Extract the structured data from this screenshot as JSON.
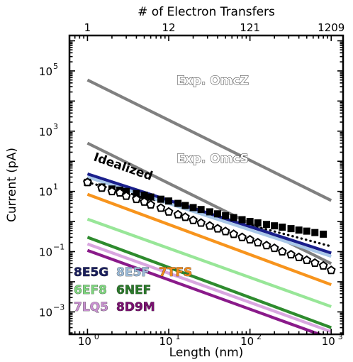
{
  "chart_data": {
    "type": "line",
    "xlabel": "Length (nm)",
    "ylabel": "Current (pA)",
    "top_xlabel": "# of Electron Transfers",
    "x_scale": "log",
    "y_scale": "log",
    "xlim": [
      0.6,
      1400
    ],
    "ylim": [
      0.00018,
      1500000
    ],
    "x_ticks": [
      {
        "value": 1,
        "label": "10",
        "exp": "0"
      },
      {
        "value": 10,
        "label": "10",
        "exp": "1"
      },
      {
        "value": 100,
        "label": "10",
        "exp": "2"
      },
      {
        "value": 1000,
        "label": "10",
        "exp": "3"
      }
    ],
    "y_ticks": [
      {
        "value": 0.001,
        "label": "10",
        "exp": "−3"
      },
      {
        "value": 0.1,
        "label": "10",
        "exp": "−1"
      },
      {
        "value": 10,
        "label": "10",
        "exp": "1"
      },
      {
        "value": 1000,
        "label": "10",
        "exp": "3"
      },
      {
        "value": 100000,
        "label": "10",
        "exp": "5"
      }
    ],
    "top_ticks": [
      {
        "x": 1,
        "label": "1"
      },
      {
        "x": 10,
        "label": "12"
      },
      {
        "x": 100,
        "label": "121"
      },
      {
        "x": 1000,
        "label": "1209"
      }
    ],
    "series": [
      {
        "name": "Exp. OmcZ",
        "color": "#808080",
        "style": "solid",
        "x": [
          1,
          1000
        ],
        "y": [
          50000,
          5
        ]
      },
      {
        "name": "Exp. OmcS",
        "color": "#808080",
        "style": "solid",
        "x": [
          1,
          1000
        ],
        "y": [
          400,
          0.04
        ]
      },
      {
        "name": "Idealized",
        "color": "#000000",
        "style": "dotted",
        "x": [
          1,
          1000
        ],
        "y": [
          20,
          0.15
        ]
      },
      {
        "name": "8E5G",
        "color": "#1a1f8c",
        "style": "solid",
        "x": [
          1,
          1000
        ],
        "y": [
          38,
          0.09
        ]
      },
      {
        "name": "8E5F",
        "color": "#a9c8e8",
        "style": "solid",
        "x": [
          1,
          1000
        ],
        "y": [
          30,
          0.07
        ]
      },
      {
        "name": "7TFS",
        "color": "#f7941d",
        "style": "solid",
        "x": [
          1,
          1000
        ],
        "y": [
          8,
          0.008
        ]
      },
      {
        "name": "6EF8",
        "color": "#98e698",
        "style": "solid",
        "x": [
          1,
          1000
        ],
        "y": [
          1.2,
          0.0015
        ]
      },
      {
        "name": "6NEF",
        "color": "#2e8b2e",
        "style": "solid",
        "x": [
          1,
          1000
        ],
        "y": [
          0.3,
          0.0003
        ]
      },
      {
        "name": "7LQ5",
        "color": "#d9a6e0",
        "style": "solid",
        "x": [
          1,
          1000
        ],
        "y": [
          0.18,
          0.00022
        ]
      },
      {
        "name": "8D9M",
        "color": "#8a1a8a",
        "style": "solid",
        "x": [
          1,
          1000
        ],
        "y": [
          0.11,
          0.00013
        ]
      },
      {
        "name": "filled markers",
        "marker": "square-filled",
        "color": "#000000",
        "x": [
          1,
          1.5,
          2,
          2.5,
          3,
          4,
          5,
          6,
          8,
          10,
          13,
          16,
          20,
          25,
          32,
          40,
          50,
          63,
          80,
          100,
          125,
          160,
          200,
          250,
          320,
          400,
          500,
          630,
          800
        ],
        "y": [
          20,
          14,
          12,
          11,
          10,
          8.5,
          7.5,
          6.5,
          5.5,
          4.8,
          4.0,
          3.4,
          2.9,
          2.5,
          2.1,
          1.8,
          1.55,
          1.35,
          1.15,
          1.0,
          0.9,
          0.8,
          0.72,
          0.65,
          0.58,
          0.52,
          0.48,
          0.43,
          0.38
        ]
      },
      {
        "name": "open markers",
        "marker": "pentagon-open",
        "color": "#000000",
        "x": [
          1,
          1.5,
          2,
          2.5,
          3,
          4,
          5,
          6,
          8,
          10,
          13,
          16,
          20,
          25,
          32,
          40,
          50,
          63,
          80,
          100,
          125,
          160,
          200,
          250,
          320,
          400,
          500,
          630,
          800,
          1000
        ],
        "y": [
          20,
          13,
          10,
          9,
          7,
          5.5,
          4.5,
          3.6,
          2.8,
          2.1,
          1.7,
          1.4,
          1.1,
          0.9,
          0.72,
          0.58,
          0.47,
          0.38,
          0.3,
          0.25,
          0.2,
          0.16,
          0.13,
          0.1,
          0.08,
          0.065,
          0.052,
          0.042,
          0.034,
          0.024
        ]
      }
    ],
    "legend": [
      {
        "name": "8E5G",
        "color": "#1a1f5e"
      },
      {
        "name": "8E5F",
        "color": "#9dbcd9"
      },
      {
        "name": "7TFS",
        "color": "#f08a1c"
      },
      {
        "name": "6EF8",
        "color": "#7fd77f"
      },
      {
        "name": "6NEF",
        "color": "#2a7a2a"
      },
      {
        "name": "7LQ5",
        "color": "#c890d0"
      },
      {
        "name": "8D9M",
        "color": "#7a1070"
      }
    ],
    "legend_placement": "bottom-left",
    "grid": false
  }
}
